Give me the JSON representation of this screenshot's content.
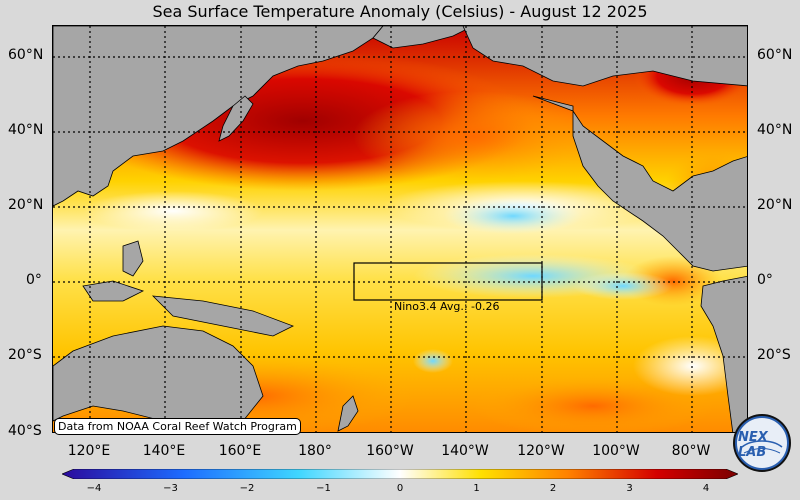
{
  "title": "Sea Surface Temperature Anomaly (Celsius) - August 12 2025",
  "lat_labels": [
    "60°N",
    "40°N",
    "20°N",
    "0°",
    "20°S",
    "40°S"
  ],
  "lon_labels": [
    "120°E",
    "140°E",
    "160°E",
    "180°",
    "160°W",
    "140°W",
    "120°W",
    "100°W",
    "80°W"
  ],
  "credit": "Data from NOAA Coral Reef Watch Program",
  "nino_box": {
    "label": "Nino3.4 Avg.: -0.26",
    "lat_range": [
      -5,
      5
    ],
    "lon_range": [
      "170°W",
      "120°W"
    ],
    "average": -0.26
  },
  "colorbar": {
    "ticks": [
      "−4",
      "−3",
      "−2",
      "−1",
      "0",
      "1",
      "2",
      "3",
      "4"
    ],
    "range": [
      -4,
      4
    ],
    "colors": [
      "#2b0a9c",
      "#1d6cff",
      "#3fd6ff",
      "#ffffff",
      "#ffe000",
      "#ff8000",
      "#d40000",
      "#7a0000"
    ]
  },
  "logo": {
    "text": "NEX LAB",
    "icon": "nexlab-logo-icon"
  },
  "colors": {
    "land": "#a6a6a6",
    "background": "#d9d9d9",
    "warm": "#ffd500",
    "hot": "#e00000",
    "cool": "#9ee8ff"
  }
}
